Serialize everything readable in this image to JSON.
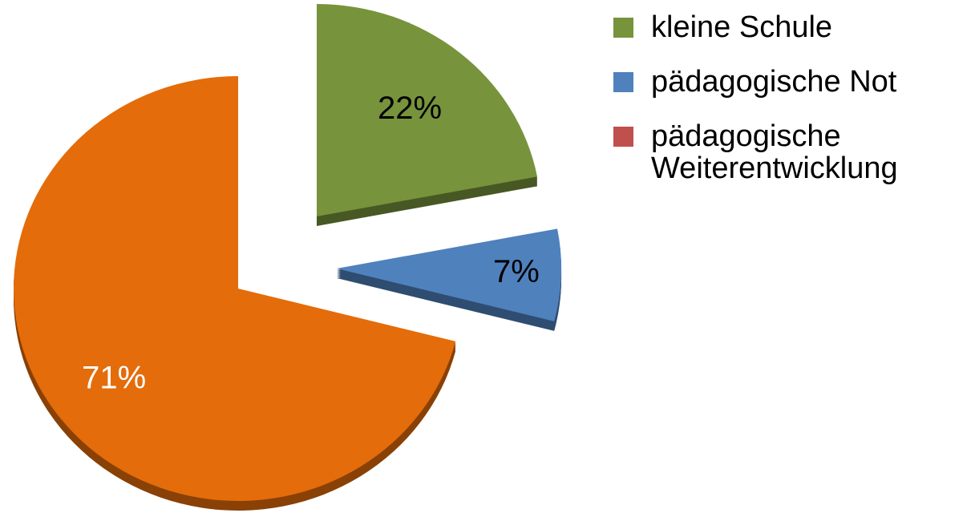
{
  "chart_data": {
    "type": "pie",
    "categories": [
      "kleine Schule",
      "pädagogische Not",
      "pädagogische Weiterentwicklung"
    ],
    "values": [
      22,
      7,
      71
    ],
    "value_labels": [
      "22%",
      "7%",
      "71%"
    ],
    "colors": [
      "#77933c",
      "#4f81bd",
      "#e46c0a"
    ],
    "legend_colors": [
      "#77933c",
      "#4f81bd",
      "#c0504d"
    ]
  }
}
